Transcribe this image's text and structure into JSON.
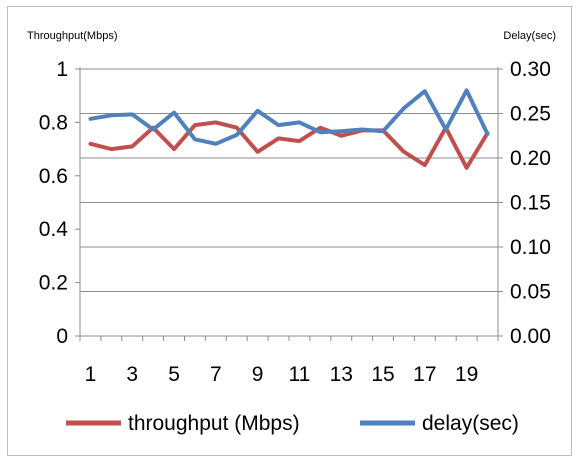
{
  "chart_data": {
    "type": "line",
    "y_axis_left": {
      "label": "Throughput(Mbps)",
      "range": [
        0,
        1
      ],
      "ticks": [
        "0",
        "0.2",
        "0.4",
        "0.6",
        "0.8",
        "1"
      ]
    },
    "y_axis_right": {
      "label": "Delay(sec)",
      "range": [
        0,
        0.3
      ],
      "ticks": [
        "0.00",
        "0.05",
        "0.10",
        "0.15",
        "0.20",
        "0.25",
        "0.30"
      ]
    },
    "x": [
      1,
      2,
      3,
      4,
      5,
      6,
      7,
      8,
      9,
      10,
      11,
      12,
      13,
      14,
      15,
      16,
      17,
      18,
      19,
      20
    ],
    "x_tick_labels": [
      "1",
      "3",
      "5",
      "7",
      "9",
      "11",
      "13",
      "15",
      "17",
      "19"
    ],
    "grid": "horizontal",
    "legend_position": "bottom",
    "series": [
      {
        "name": "throughput (Mbps)",
        "axis": "left",
        "color": "#c0504d",
        "values": [
          0.72,
          0.7,
          0.71,
          0.78,
          0.7,
          0.79,
          0.8,
          0.78,
          0.69,
          0.74,
          0.73,
          0.78,
          0.75,
          0.77,
          0.77,
          0.69,
          0.64,
          0.78,
          0.63,
          0.76
        ]
      },
      {
        "name": "delay(sec)",
        "axis": "right",
        "color": "#4f81bd",
        "values": [
          0.244,
          0.248,
          0.249,
          0.232,
          0.251,
          0.221,
          0.216,
          0.226,
          0.253,
          0.237,
          0.24,
          0.229,
          0.23,
          0.232,
          0.23,
          0.256,
          0.275,
          0.232,
          0.276,
          0.227
        ]
      }
    ]
  }
}
